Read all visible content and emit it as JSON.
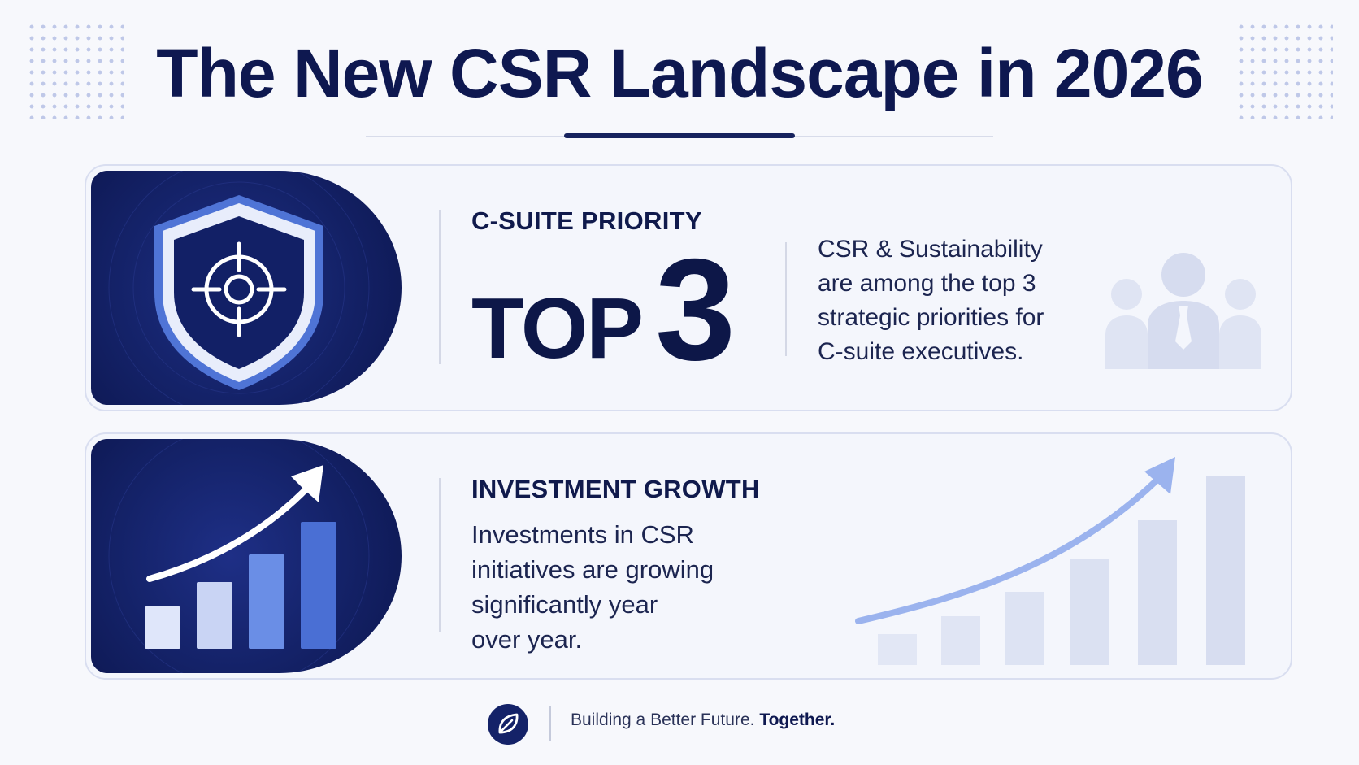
{
  "title": "The New CSR Landscape in 2026",
  "cards": [
    {
      "label": "C-SUITE PRIORITY",
      "stat_prefix": "TOP",
      "stat_value": "3",
      "description_lines": [
        "CSR & Sustainability",
        "are among the top 3",
        "strategic priorities for",
        "C-suite executives."
      ],
      "badge_icon": "shield-target-icon",
      "side_icon": "executive-team-icon"
    },
    {
      "label": "INVESTMENT GROWTH",
      "description_lines": [
        "Investments in CSR",
        "initiatives are growing",
        "significantly year",
        "over year."
      ],
      "badge_icon": "growth-chart-icon",
      "side_icon": "growth-bars-icon"
    }
  ],
  "footer": {
    "logo_icon": "leaf-icon",
    "tagline": "Building a Better Future.",
    "tagline_strong": "Together."
  },
  "colors": {
    "navy": "#0e1850",
    "badge_blue": "#142268",
    "accent_blue": "#5b7ee0",
    "pale_blue": "#dde3f3",
    "background": "#f7f8fc"
  }
}
